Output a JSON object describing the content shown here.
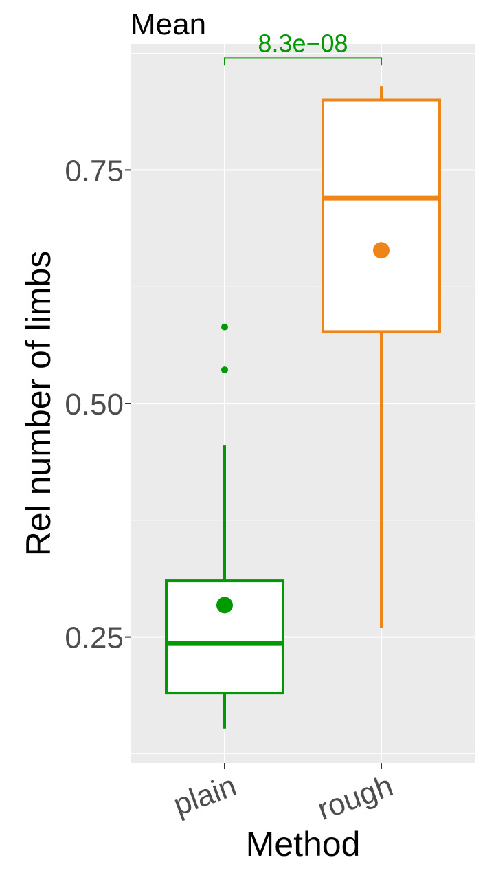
{
  "chart_data": {
    "type": "box",
    "title": "Mean",
    "xlabel": "Method",
    "ylabel": "Rel number of limbs",
    "categories": [
      "plain",
      "rough"
    ],
    "yticks": [
      0.25,
      0.5,
      0.75
    ],
    "ytick_labels": [
      "0.25",
      "0.50",
      "0.75"
    ],
    "ylim": [
      0.115,
      0.885
    ],
    "grid": true,
    "colors": {
      "plain": "#009900",
      "rough": "#ee8519",
      "panel": "#ebebeb",
      "grid": "#ffffff"
    },
    "series": [
      {
        "category": "plain",
        "whisker_low": 0.152,
        "q1": 0.19,
        "median": 0.243,
        "q3": 0.31,
        "whisker_high": 0.455,
        "mean": 0.284,
        "outliers": [
          0.536,
          0.582
        ]
      },
      {
        "category": "rough",
        "whisker_low": 0.26,
        "q1": 0.577,
        "median": 0.72,
        "q3": 0.825,
        "whisker_high": 0.84,
        "mean": 0.664,
        "outliers": []
      }
    ],
    "annotations": [
      {
        "text": "8.3e−08",
        "from": "plain",
        "to": "rough",
        "y": 0.87,
        "tip": 0.862,
        "color": "#009900"
      }
    ]
  }
}
